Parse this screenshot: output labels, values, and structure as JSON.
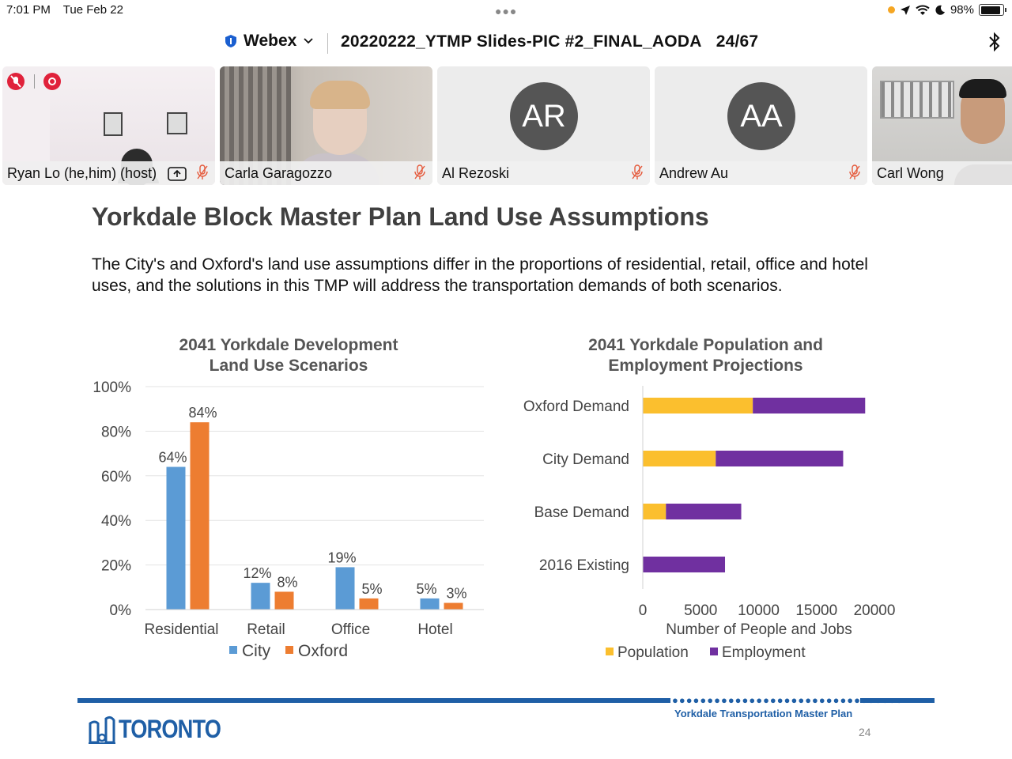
{
  "status_bar": {
    "time": "7:01 PM",
    "date": "Tue Feb 22",
    "battery": "98%"
  },
  "header": {
    "app_name": "Webex",
    "doc_title": "20220222_YTMP Slides-PIC #2_FINAL_AODA",
    "page_count": "24/67"
  },
  "participants": [
    {
      "name": "Ryan Lo (he,him) (host)",
      "muted": true
    },
    {
      "name": "Carla Garagozzo",
      "muted": true
    },
    {
      "name": "Al Rezoski",
      "initials": "AR",
      "muted": true
    },
    {
      "name": "Andrew Au",
      "initials": "AA",
      "muted": true
    },
    {
      "name": "Carl Wong"
    }
  ],
  "slide": {
    "title": "Yorkdale Block Master Plan Land Use Assumptions",
    "body": "The City's and Oxford's land use assumptions differ in the proportions of residential, retail, office and hotel uses, and the solutions in this TMP will address the transportation demands of both scenarios.",
    "footer_text": "Yorkdale Transportation Master Plan",
    "page_number": "24",
    "logo_text": "TORONTO"
  },
  "colors": {
    "city": "#5b9bd5",
    "oxford": "#ed7d31",
    "population": "#fbbf2e",
    "employment": "#7030a0",
    "brand": "#1f5fa6"
  },
  "chart_data": [
    {
      "type": "bar",
      "title_line1": "2041 Yorkdale Development",
      "title_line2": "Land Use Scenarios",
      "categories": [
        "Residential",
        "Retail",
        "Office",
        "Hotel"
      ],
      "series": [
        {
          "name": "City",
          "values": [
            64,
            12,
            19,
            5
          ]
        },
        {
          "name": "Oxford",
          "values": [
            84,
            8,
            5,
            3
          ]
        }
      ],
      "ylim": [
        0,
        100
      ],
      "yticks": [
        "0%",
        "20%",
        "40%",
        "60%",
        "80%",
        "100%"
      ],
      "data_labels": [
        [
          "64%",
          "12%",
          "19%",
          "5%"
        ],
        [
          "84%",
          "8%",
          "5%",
          "3%"
        ]
      ],
      "legend": "bottom",
      "grid": true
    },
    {
      "type": "bar",
      "orientation": "horizontal",
      "stacked": true,
      "title_line1": "2041 Yorkdale Population and",
      "title_line2": "Employment Projections",
      "categories": [
        "Oxford  Demand",
        "City Demand",
        "Base Demand",
        "2016 Existing"
      ],
      "series": [
        {
          "name": "Population",
          "values": [
            9500,
            6300,
            2000,
            0
          ]
        },
        {
          "name": "Employment",
          "values": [
            9700,
            11000,
            6500,
            7100
          ]
        }
      ],
      "xlabel": "Number of People and Jobs",
      "xlim": [
        0,
        20000
      ],
      "xticks": [
        "0",
        "5000",
        "10000",
        "15000",
        "20000"
      ],
      "legend": "bottom",
      "grid": false
    }
  ]
}
